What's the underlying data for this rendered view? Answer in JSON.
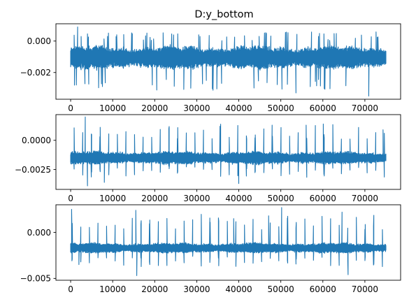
{
  "figure": {
    "title": "D:y_bottom",
    "line_color": "#1f77b4"
  },
  "chart_data": [
    {
      "type": "line",
      "title": "D:y_bottom",
      "xlabel": "",
      "ylabel": "",
      "xlim": [
        -3500,
        78500
      ],
      "ylim": [
        -0.0037,
        0.0011
      ],
      "x_ticks": [
        0,
        10000,
        20000,
        30000,
        40000,
        50000,
        60000,
        70000
      ],
      "x_tick_labels": [
        "0",
        "10000",
        "20000",
        "30000",
        "40000",
        "50000",
        "60000",
        "70000"
      ],
      "y_ticks": [
        0.0,
        -0.002
      ],
      "y_tick_labels": [
        "0.000",
        "−0.002"
      ],
      "grid": false,
      "series": [
        {
          "x_range": [
            0,
            75000
          ],
          "baseline": -0.00105,
          "noise_amplitude": 0.00055,
          "max": 0.0009,
          "min": -0.0035,
          "spikes": [
            {
              "x": 1700,
              "y": 0.0009
            },
            {
              "x": 8800,
              "y": 0.0003
            },
            {
              "x": 30500,
              "y": 0.0004
            },
            {
              "x": 44800,
              "y": 0.0003
            },
            {
              "x": 59000,
              "y": 0.0003
            },
            {
              "x": 28600,
              "y": -0.003
            },
            {
              "x": 53600,
              "y": -0.0033
            },
            {
              "x": 70900,
              "y": -0.0035
            },
            {
              "x": 57000,
              "y": -0.0029
            }
          ]
        }
      ]
    },
    {
      "type": "line",
      "title": "",
      "xlabel": "",
      "ylabel": "",
      "xlim": [
        -3500,
        78500
      ],
      "ylim": [
        -0.0042,
        0.0022
      ],
      "x_ticks": [
        0,
        10000,
        20000,
        30000,
        40000,
        50000,
        60000,
        70000
      ],
      "x_tick_labels": [
        "0",
        "10000",
        "20000",
        "30000",
        "40000",
        "50000",
        "60000",
        "70000"
      ],
      "y_ticks": [
        0.0,
        -0.0025
      ],
      "y_tick_labels": [
        "0.0000",
        "−0.0025"
      ],
      "grid": false,
      "series": [
        {
          "x_range": [
            0,
            75000
          ],
          "baseline": -0.0015,
          "noise_amplitude": 0.0004,
          "max": 0.002,
          "min": -0.0039,
          "spike_period": 2050,
          "spike_start": 800,
          "spikes": [
            {
              "x": 3500,
              "y": 0.002
            },
            {
              "x": 35500,
              "y": 0.0012
            },
            {
              "x": 47900,
              "y": 0.0013
            },
            {
              "x": 56000,
              "y": 0.0013
            },
            {
              "x": 60100,
              "y": 0.0014
            },
            {
              "x": 74300,
              "y": 0.0009
            },
            {
              "x": 4000,
              "y": -0.0039
            },
            {
              "x": 8000,
              "y": -0.0036
            },
            {
              "x": 40000,
              "y": -0.0037
            }
          ]
        }
      ]
    },
    {
      "type": "line",
      "title": "",
      "xlabel": "",
      "ylabel": "",
      "xlim": [
        -3500,
        78500
      ],
      "ylim": [
        -0.0052,
        0.003
      ],
      "x_ticks": [
        0,
        10000,
        20000,
        30000,
        40000,
        50000,
        60000,
        70000
      ],
      "x_tick_labels": [
        "0",
        "10000",
        "20000",
        "30000",
        "40000",
        "50000",
        "60000",
        "70000"
      ],
      "y_ticks": [
        0.0,
        -0.005
      ],
      "y_tick_labels": [
        "0.000",
        "−0.005"
      ],
      "grid": false,
      "series": [
        {
          "x_range": [
            0,
            75000
          ],
          "baseline": -0.0017,
          "noise_amplitude": 0.0004,
          "max": 0.0027,
          "min": -0.0047,
          "spike_period": 2050,
          "spike_start": 300,
          "spikes": [
            {
              "x": 200,
              "y": 0.0025
            },
            {
              "x": 15500,
              "y": 0.0024
            },
            {
              "x": 50200,
              "y": 0.0027
            },
            {
              "x": 64600,
              "y": 0.0022
            },
            {
              "x": 47100,
              "y": 0.0018
            },
            {
              "x": 38800,
              "y": 0.0015
            },
            {
              "x": 15700,
              "y": -0.0047
            },
            {
              "x": 66000,
              "y": -0.0046
            },
            {
              "x": 2000,
              "y": -0.0035
            }
          ]
        }
      ]
    }
  ]
}
